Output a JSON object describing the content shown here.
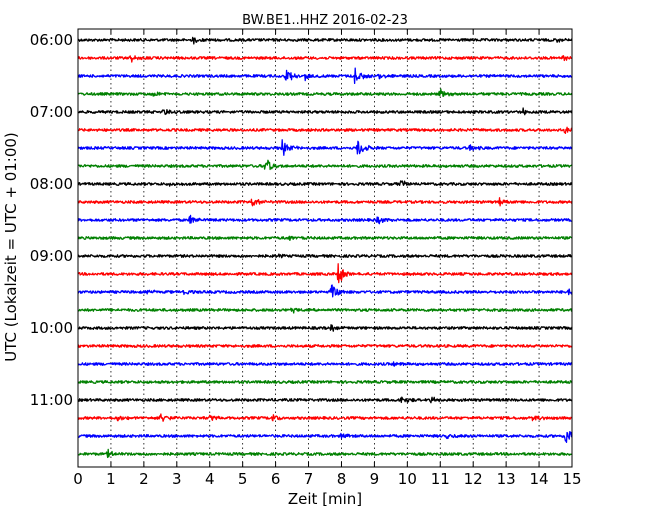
{
  "chart_data": {
    "type": "line",
    "title": "BW.BE1..HHZ 2016-02-23",
    "xlabel": "Zeit  [min]",
    "ylabel": "UTC (Lokalzeit = UTC + 01:00)",
    "xlim": [
      0,
      15
    ],
    "x_ticks": [
      "0",
      "1",
      "2",
      "3",
      "4",
      "5",
      "6",
      "7",
      "8",
      "9",
      "10",
      "11",
      "12",
      "13",
      "14",
      "15"
    ],
    "y_ticks": [
      "06:00",
      "07:00",
      "08:00",
      "09:00",
      "10:00",
      "11:00"
    ],
    "vertical_grid": true,
    "trace_colors": [
      "#000000",
      "#ff0000",
      "#0000ff",
      "#008000"
    ],
    "traces": [
      {
        "start": "06:00",
        "color": "#000000",
        "events": [
          {
            "t": 3.5,
            "amp": 0.25
          },
          {
            "t": 14.5,
            "amp": 0.2
          }
        ]
      },
      {
        "start": "06:15",
        "color": "#ff0000",
        "events": [
          {
            "t": 1.6,
            "amp": 0.3
          },
          {
            "t": 14.7,
            "amp": 0.2
          }
        ]
      },
      {
        "start": "06:30",
        "color": "#0000ff",
        "events": [
          {
            "t": 6.3,
            "amp": 0.6
          },
          {
            "t": 6.9,
            "amp": 0.35
          },
          {
            "t": 8.4,
            "amp": 0.75
          },
          {
            "t": 9.1,
            "amp": 0.45
          }
        ]
      },
      {
        "start": "06:45",
        "color": "#008000",
        "events": [
          {
            "t": 2.3,
            "amp": 0.3
          },
          {
            "t": 11.0,
            "amp": 0.4
          }
        ]
      },
      {
        "start": "07:00",
        "color": "#000000",
        "events": [
          {
            "t": 2.6,
            "amp": 0.25
          },
          {
            "t": 13.5,
            "amp": 0.25
          }
        ]
      },
      {
        "start": "07:15",
        "color": "#ff0000",
        "events": [
          {
            "t": 14.8,
            "amp": 0.25
          }
        ]
      },
      {
        "start": "07:30",
        "color": "#0000ff",
        "events": [
          {
            "t": 6.2,
            "amp": 0.65
          },
          {
            "t": 8.5,
            "amp": 0.85
          },
          {
            "t": 11.9,
            "amp": 0.25
          }
        ]
      },
      {
        "start": "07:45",
        "color": "#008000",
        "events": [
          {
            "t": 5.7,
            "amp": 0.75
          }
        ]
      },
      {
        "start": "08:00",
        "color": "#000000",
        "events": [
          {
            "t": 2.8,
            "amp": 0.25
          },
          {
            "t": 9.8,
            "amp": 0.35
          }
        ]
      },
      {
        "start": "08:15",
        "color": "#ff0000",
        "events": [
          {
            "t": 5.3,
            "amp": 0.35
          },
          {
            "t": 12.8,
            "amp": 0.3
          }
        ]
      },
      {
        "start": "08:30",
        "color": "#0000ff",
        "events": [
          {
            "t": 3.4,
            "amp": 0.4
          },
          {
            "t": 9.1,
            "amp": 0.3
          }
        ]
      },
      {
        "start": "08:45",
        "color": "#008000",
        "events": [
          {
            "t": 6.4,
            "amp": 0.2
          }
        ]
      },
      {
        "start": "09:00",
        "color": "#000000",
        "events": [
          {
            "t": 6.0,
            "amp": 0.15
          }
        ]
      },
      {
        "start": "09:15",
        "color": "#ff0000",
        "events": [
          {
            "t": 7.9,
            "amp": 0.9
          }
        ]
      },
      {
        "start": "09:30",
        "color": "#0000ff",
        "events": [
          {
            "t": 2.1,
            "amp": 0.3
          },
          {
            "t": 3.2,
            "amp": 0.25
          },
          {
            "t": 7.7,
            "amp": 0.6
          },
          {
            "t": 14.9,
            "amp": 0.3
          }
        ]
      },
      {
        "start": "09:45",
        "color": "#008000",
        "events": [
          {
            "t": 6.5,
            "amp": 0.25
          }
        ]
      },
      {
        "start": "10:00",
        "color": "#000000",
        "events": [
          {
            "t": 7.7,
            "amp": 0.3
          }
        ]
      },
      {
        "start": "10:15",
        "color": "#ff0000",
        "events": []
      },
      {
        "start": "10:30",
        "color": "#0000ff",
        "events": [
          {
            "t": 9.6,
            "amp": 0.2
          }
        ]
      },
      {
        "start": "10:45",
        "color": "#008000",
        "events": []
      },
      {
        "start": "11:00",
        "color": "#000000",
        "events": [
          {
            "t": 9.8,
            "amp": 0.35
          },
          {
            "t": 10.7,
            "amp": 0.25
          }
        ]
      },
      {
        "start": "11:15",
        "color": "#ff0000",
        "events": [
          {
            "t": 1.2,
            "amp": 0.3
          },
          {
            "t": 2.5,
            "amp": 0.35
          },
          {
            "t": 4.0,
            "amp": 0.3
          },
          {
            "t": 5.9,
            "amp": 0.3
          },
          {
            "t": 13.8,
            "amp": 0.25
          }
        ]
      },
      {
        "start": "11:30",
        "color": "#0000ff",
        "events": [
          {
            "t": 8.0,
            "amp": 0.3
          },
          {
            "t": 11.2,
            "amp": 0.25
          },
          {
            "t": 14.8,
            "amp": 0.7
          }
        ]
      },
      {
        "start": "11:45",
        "color": "#008000",
        "events": [
          {
            "t": 0.9,
            "amp": 0.3
          }
        ]
      }
    ]
  }
}
